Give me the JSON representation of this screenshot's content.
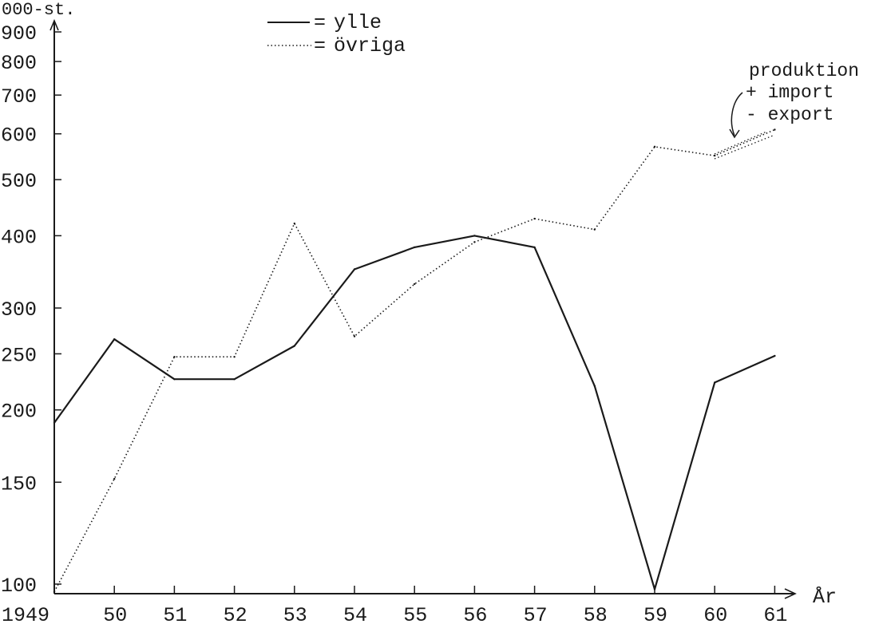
{
  "chart_data": {
    "type": "line",
    "title": "",
    "ylabel": "000-st.",
    "xlabel": "År",
    "yscale": "log",
    "ylim": [
      100,
      900
    ],
    "yticks": [
      100,
      150,
      200,
      250,
      300,
      400,
      500,
      600,
      700,
      800,
      900
    ],
    "x": [
      "1949",
      "50",
      "51",
      "52",
      "53",
      "54",
      "55",
      "56",
      "57",
      "58",
      "59",
      "60",
      "61"
    ],
    "series": [
      {
        "name": "ylle",
        "style": "solid",
        "values": [
          190,
          265,
          226,
          226,
          258,
          350,
          382,
          400,
          382,
          220,
          98,
          223,
          248
        ]
      },
      {
        "name": "övriga",
        "style": "dotted",
        "values": [
          97,
          152,
          247,
          247,
          420,
          268,
          330,
          390,
          428,
          410,
          570,
          550,
          610
        ]
      }
    ],
    "annotation": {
      "lines": [
        "produktion",
        "+ import",
        "- export"
      ]
    },
    "legend": {
      "placement": "top-center",
      "entries": [
        {
          "marker": "—— =",
          "label": "ylle"
        },
        {
          "marker": "······· =",
          "label": "övriga"
        }
      ]
    },
    "colors": {
      "ink": "#1a1a1a",
      "background": "#ffffff"
    },
    "grid": false
  }
}
